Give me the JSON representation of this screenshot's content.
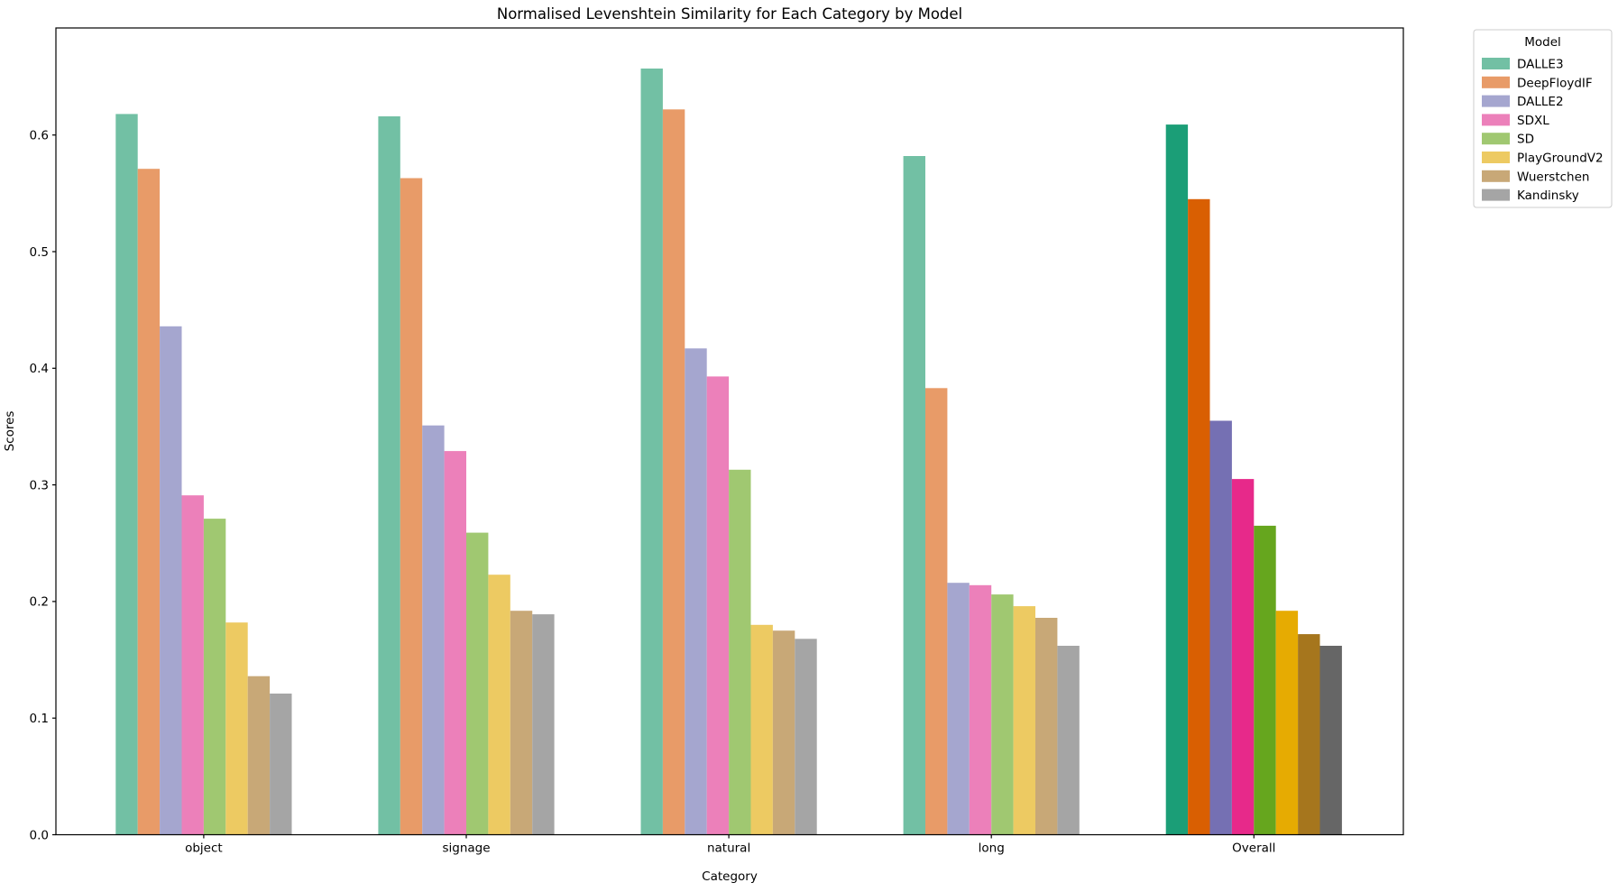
{
  "chart_data": {
    "type": "bar",
    "title": "Normalised Levenshtein Similarity for Each Category by Model",
    "xlabel": "Category",
    "ylabel": "Scores",
    "legend_title": "Model",
    "legend_position": "upper right outside axes",
    "grid": false,
    "ylim": [
      0.0,
      0.69
    ],
    "yticks": [
      0.0,
      0.1,
      0.2,
      0.3,
      0.4,
      0.5,
      0.6
    ],
    "categories": [
      "object",
      "signage",
      "natural",
      "long",
      "Overall"
    ],
    "palette_note_colors": {
      "regular_palette_name_hint": "pastel (Set2-like) for category groups",
      "overall_palette_name_hint": "dark (Dark2-like) for Overall group"
    },
    "series": [
      {
        "name": "DALLE3",
        "color": "#72c0a4",
        "overall_color": "#1b9e77",
        "values": [
          0.618,
          0.616,
          0.657,
          0.582,
          0.609
        ]
      },
      {
        "name": "DeepFloydIF",
        "color": "#e89b68",
        "overall_color": "#d95f02",
        "values": [
          0.571,
          0.563,
          0.622,
          0.383,
          0.545
        ]
      },
      {
        "name": "DALLE2",
        "color": "#a5a6cf",
        "overall_color": "#7570b3",
        "values": [
          0.436,
          0.351,
          0.417,
          0.216,
          0.355
        ]
      },
      {
        "name": "SDXL",
        "color": "#ec80ba",
        "overall_color": "#e7298a",
        "values": [
          0.291,
          0.329,
          0.393,
          0.214,
          0.305
        ]
      },
      {
        "name": "SD",
        "color": "#a0c871",
        "overall_color": "#66a61e",
        "values": [
          0.271,
          0.259,
          0.313,
          0.206,
          0.265
        ]
      },
      {
        "name": "PlayGroundV2",
        "color": "#edca62",
        "overall_color": "#e6ab02",
        "values": [
          0.182,
          0.223,
          0.18,
          0.196,
          0.192
        ]
      },
      {
        "name": "Wuerstchen",
        "color": "#c8a877",
        "overall_color": "#a6761d",
        "values": [
          0.136,
          0.192,
          0.175,
          0.186,
          0.172
        ]
      },
      {
        "name": "Kandinsky",
        "color": "#a5a5a5",
        "overall_color": "#666666",
        "values": [
          0.121,
          0.189,
          0.168,
          0.162,
          0.162
        ]
      }
    ],
    "axis_color": "#000000",
    "legend_border_color": "#cccccc",
    "background_color": "#ffffff"
  }
}
